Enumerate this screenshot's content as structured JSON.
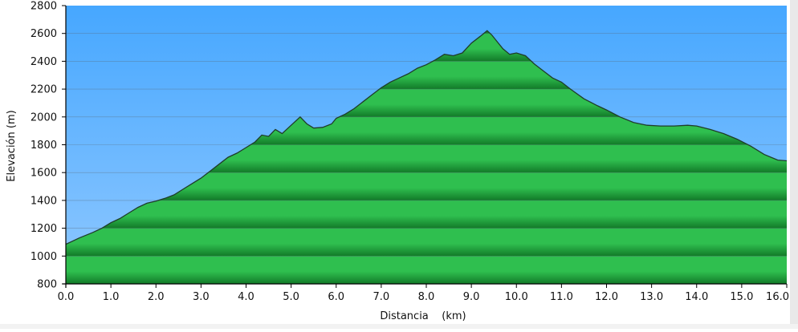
{
  "chart_data": {
    "type": "area",
    "title": "",
    "xlabel": "Distancia    (km)",
    "ylabel": "Elevación (m)",
    "xlim": [
      0,
      16
    ],
    "ylim": [
      800,
      2800
    ],
    "x_ticks": [
      0,
      1,
      2,
      3,
      4,
      5,
      6,
      7,
      8,
      9,
      10,
      11,
      12,
      13,
      14,
      15,
      16
    ],
    "x_tick_labels": [
      "0.0",
      "1.0",
      "2.0",
      "3.0",
      "4.0",
      "5.0",
      "6.0",
      "7.0",
      "8.0",
      "9.0",
      "10.0",
      "11.0",
      "12.0",
      "13.0",
      "14.0",
      "15.0",
      "16.0"
    ],
    "y_ticks": [
      800,
      1000,
      1200,
      1400,
      1600,
      1800,
      2000,
      2200,
      2400,
      2600,
      2800
    ],
    "y_tick_labels": [
      "800",
      "1000",
      "1200",
      "1400",
      "1600",
      "1800",
      "2000",
      "2200",
      "2400",
      "2600",
      "2800"
    ],
    "grid": true,
    "colors": {
      "sky_top": "#46a7ff",
      "sky_bottom": "#8fc8ff",
      "fill_light": "#2fbf4f",
      "fill_dark": "#127a28",
      "outline": "#1f3d2a",
      "grid": "#5a6a7a"
    },
    "series": [
      {
        "x": [
          0.0,
          0.3,
          0.6,
          0.8,
          1.0,
          1.2,
          1.4,
          1.6,
          1.8,
          2.0,
          2.2,
          2.4,
          2.6,
          2.8,
          3.0,
          3.2,
          3.4,
          3.6,
          3.8,
          4.0,
          4.2,
          4.35,
          4.5,
          4.65,
          4.8,
          5.0,
          5.2,
          5.35,
          5.5,
          5.7,
          5.9,
          6.0,
          6.2,
          6.4,
          6.6,
          6.8,
          7.0,
          7.2,
          7.4,
          7.6,
          7.8,
          8.0,
          8.2,
          8.4,
          8.6,
          8.8,
          9.0,
          9.2,
          9.35,
          9.45,
          9.55,
          9.7,
          9.85,
          10.0,
          10.2,
          10.4,
          10.6,
          10.8,
          11.0,
          11.2,
          11.5,
          11.8,
          12.0,
          12.3,
          12.6,
          12.9,
          13.2,
          13.5,
          13.8,
          14.0,
          14.3,
          14.6,
          14.9,
          15.2,
          15.5,
          15.8,
          16.0
        ],
        "y": [
          1085,
          1130,
          1170,
          1200,
          1240,
          1270,
          1310,
          1350,
          1380,
          1395,
          1415,
          1440,
          1480,
          1520,
          1560,
          1610,
          1660,
          1710,
          1740,
          1780,
          1820,
          1870,
          1860,
          1910,
          1880,
          1940,
          2000,
          1950,
          1920,
          1925,
          1950,
          1990,
          2020,
          2060,
          2110,
          2160,
          2210,
          2250,
          2280,
          2310,
          2350,
          2375,
          2410,
          2450,
          2440,
          2460,
          2530,
          2580,
          2620,
          2590,
          2550,
          2490,
          2450,
          2460,
          2440,
          2380,
          2330,
          2280,
          2250,
          2200,
          2130,
          2080,
          2050,
          2000,
          1960,
          1940,
          1935,
          1935,
          1940,
          1935,
          1910,
          1880,
          1840,
          1790,
          1730,
          1690,
          1685
        ]
      }
    ]
  }
}
